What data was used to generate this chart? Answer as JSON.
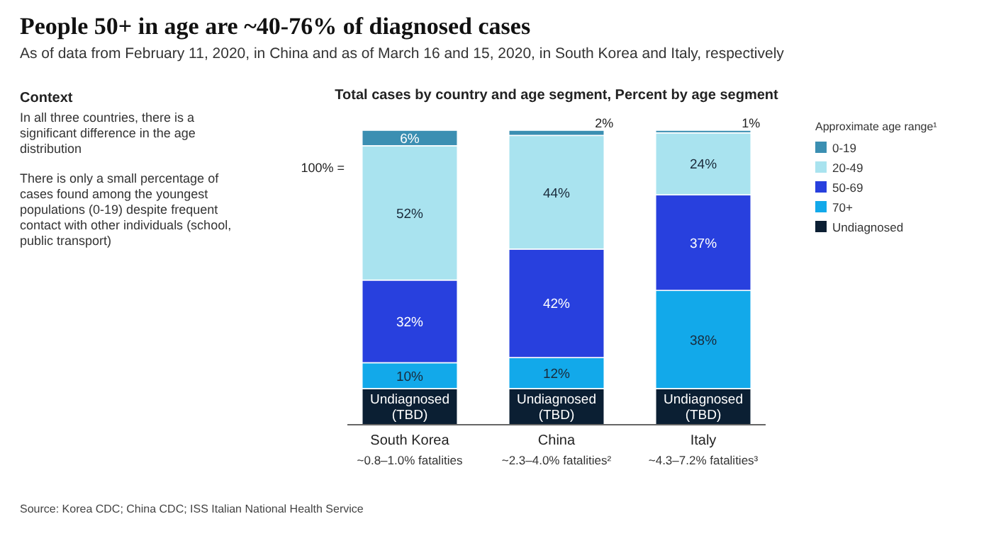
{
  "chart_data": {
    "type": "bar",
    "title": "People 50+ in age are ~40-76% of diagnosed cases",
    "subtitle": "As of data from February 11, 2020, in China and as of March 16 and 15, 2020, in South Korea and Italy, respectively",
    "xlabel": "Total cases by country and age segment, Percent by age segment",
    "legend_title": "Approximate age range¹",
    "categories": [
      "South Korea",
      "China",
      "Italy"
    ],
    "stacked": true,
    "ylim": [
      0,
      114
    ],
    "tick_labels": "x",
    "legend": "right",
    "series": [
      {
        "name": "Undiagnosed",
        "color": "#0b1f33",
        "values": [
          14,
          14,
          14
        ],
        "value_labels": [
          "Undiagnosed (TBD)",
          "Undiagnosed (TBD)",
          "Undiagnosed (TBD)"
        ]
      },
      {
        "name": "70+",
        "color": "#12a9ea",
        "values": [
          10,
          12,
          38
        ],
        "value_labels": [
          "10%",
          "12%",
          "38%"
        ]
      },
      {
        "name": "50-69",
        "color": "#2840de",
        "values": [
          32,
          42,
          37
        ],
        "value_labels": [
          "32%",
          "42%",
          "37%"
        ]
      },
      {
        "name": "20-49",
        "color": "#a9e3ef",
        "values": [
          52,
          44,
          24
        ],
        "value_labels": [
          "52%",
          "44%",
          "24%"
        ]
      },
      {
        "name": "0-19",
        "color": "#3b8fb2",
        "values": [
          6,
          2,
          1
        ],
        "value_labels": [
          "6%",
          "2%",
          "1%"
        ]
      }
    ],
    "annotations": [
      "100% =",
      "~0.8–1.0% fatalities",
      "~2.3–4.0% fatalities²",
      "~4.3–7.2% fatalities³",
      "Context",
      "In all three countries, there is a significant difference in the age distribution",
      "There is only a small percentage of cases found among the youngest populations (0-19) despite frequent contact with other individuals (school, public transport)",
      "Source: Korea CDC; China CDC; ISS Italian National Health Service"
    ]
  }
}
